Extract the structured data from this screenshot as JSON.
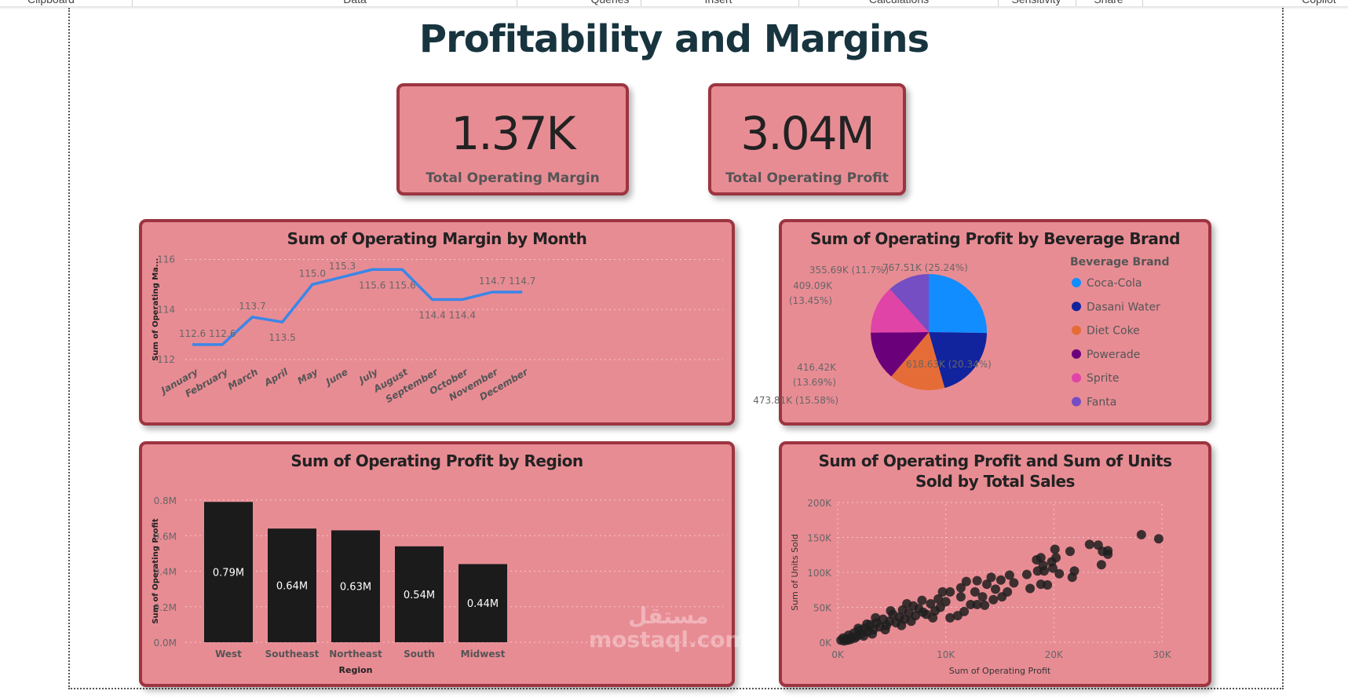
{
  "ribbon": {
    "groups": [
      "Clipboard",
      "Data",
      "Queries",
      "Insert",
      "Calculations",
      "Sensitivity",
      "Share",
      "Copilot"
    ]
  },
  "page": {
    "title": "Profitability and Margins"
  },
  "kpis": [
    {
      "value": "1.37K",
      "label": "Total Operating Margin"
    },
    {
      "value": "3.04M",
      "label": "Total Operating Profit"
    }
  ],
  "watermark": {
    "arabic": "مستقل",
    "latin": "mostaql.com"
  },
  "colors": {
    "card_bg": "#e88c94",
    "card_border": "#9c3540",
    "line": "#3a86e8",
    "bar": "#1b1b1b",
    "dot": "#1e1e1e"
  },
  "chart_data": [
    {
      "type": "line",
      "title": "Sum of Operating Margin by Month",
      "ylabel": "Sum of Operating Ma...",
      "xlabel": "",
      "categories": [
        "January",
        "February",
        "March",
        "April",
        "May",
        "June",
        "July",
        "August",
        "September",
        "October",
        "November",
        "December"
      ],
      "values": [
        112.6,
        112.6,
        113.7,
        113.5,
        115.0,
        115.3,
        115.6,
        115.6,
        114.4,
        114.4,
        114.7,
        114.7
      ],
      "labels": [
        "112.6",
        "112.6",
        "113.7",
        "113.5",
        "115.0",
        "115.3",
        "115.6",
        "115.6",
        "114.4",
        "114.4",
        "114.7",
        "114.7"
      ],
      "ylim": [
        112,
        116
      ],
      "yticks": [
        "112",
        "114",
        "116"
      ],
      "grid": true
    },
    {
      "type": "pie",
      "title": "Sum of Operating Profit by Beverage Brand",
      "legend_title": "Beverage Brand",
      "legend": "right",
      "slices": [
        {
          "name": "Coca-Cola",
          "value": 767.51,
          "label": "767.51K (25.24%)",
          "color": "#118dff"
        },
        {
          "name": "Dasani Water",
          "value": 618.63,
          "label": "618.63K (20.34%)",
          "color": "#12239e"
        },
        {
          "name": "Diet Coke",
          "value": 473.81,
          "label": "473.81K (15.58%)",
          "color": "#e66c37"
        },
        {
          "name": "Powerade",
          "value": 416.42,
          "label": "416.42K",
          "label2": "(13.69%)",
          "color": "#6b007b"
        },
        {
          "name": "Sprite",
          "value": 409.09,
          "label": "409.09K",
          "label2": "(13.45%)",
          "color": "#e044a7"
        },
        {
          "name": "Fanta",
          "value": 355.69,
          "label": "355.69K (11.7%)",
          "color": "#744ec2"
        }
      ]
    },
    {
      "type": "bar",
      "title": "Sum of Operating Profit by Region",
      "xlabel": "Region",
      "ylabel": "Sum of Operating Profit",
      "categories": [
        "West",
        "Southeast",
        "Northeast",
        "South",
        "Midwest"
      ],
      "values": [
        0.79,
        0.64,
        0.63,
        0.54,
        0.44
      ],
      "labels": [
        "0.79M",
        "0.64M",
        "0.63M",
        "0.54M",
        "0.44M"
      ],
      "ylim": [
        0,
        0.8
      ],
      "yticks": [
        "0.0M",
        "0.2M",
        "0.4M",
        "0.6M",
        "0.8M"
      ],
      "grid": true
    },
    {
      "type": "scatter",
      "title": "Sum of Operating Profit and Sum of Units Sold by Total Sales",
      "xlabel": "Sum of Operating Profit",
      "ylabel": "Sum of Units Sold",
      "xlim": [
        0,
        30
      ],
      "ylim": [
        0,
        200
      ],
      "xticks": [
        "0K",
        "10K",
        "20K",
        "30K"
      ],
      "yticks": [
        "0K",
        "50K",
        "100K",
        "150K",
        "200K"
      ],
      "units": "thousands",
      "grid": true,
      "points": [
        [
          28.1,
          154
        ],
        [
          29.7,
          148
        ],
        [
          23.3,
          140
        ],
        [
          24.1,
          139
        ],
        [
          24.5,
          130
        ],
        [
          25,
          126
        ],
        [
          25,
          131
        ],
        [
          24.4,
          111
        ],
        [
          21.5,
          130
        ],
        [
          21.9,
          102
        ],
        [
          21.7,
          93
        ],
        [
          20.1,
          133
        ],
        [
          20.2,
          121
        ],
        [
          19.8,
          115
        ],
        [
          19.9,
          106
        ],
        [
          20.5,
          98
        ],
        [
          18.4,
          118
        ],
        [
          18.8,
          121
        ],
        [
          19,
          110
        ],
        [
          18.5,
          102
        ],
        [
          19.1,
          102
        ],
        [
          17.5,
          97
        ],
        [
          17.8,
          77
        ],
        [
          18.8,
          83
        ],
        [
          19.4,
          82
        ],
        [
          15.9,
          96
        ],
        [
          16.3,
          85
        ],
        [
          15.1,
          89
        ],
        [
          14.2,
          93
        ],
        [
          13.8,
          83
        ],
        [
          15.7,
          72
        ],
        [
          15.2,
          65
        ],
        [
          14.4,
          61
        ],
        [
          14.6,
          76
        ],
        [
          12.9,
          88
        ],
        [
          11.9,
          87
        ],
        [
          11.4,
          78
        ],
        [
          12.7,
          72
        ],
        [
          13.4,
          65
        ],
        [
          13.6,
          53
        ],
        [
          12.9,
          54
        ],
        [
          12.3,
          54
        ],
        [
          11.7,
          44
        ],
        [
          11.1,
          38
        ],
        [
          10.4,
          35
        ],
        [
          10.4,
          72
        ],
        [
          9.7,
          72
        ],
        [
          11.4,
          65
        ],
        [
          10,
          58
        ],
        [
          9.5,
          50
        ],
        [
          9,
          45
        ],
        [
          8.6,
          55
        ],
        [
          8.2,
          40
        ],
        [
          7.8,
          60
        ],
        [
          7.5,
          48
        ],
        [
          7.2,
          38
        ],
        [
          7,
          52
        ],
        [
          6.6,
          42
        ],
        [
          6.2,
          33
        ],
        [
          6,
          46
        ],
        [
          5.7,
          36
        ],
        [
          5.4,
          28
        ],
        [
          5.1,
          40
        ],
        [
          4.8,
          30
        ],
        [
          4.5,
          24
        ],
        [
          4.2,
          33
        ],
        [
          3.9,
          22
        ],
        [
          3.6,
          28
        ],
        [
          3.3,
          18
        ],
        [
          3,
          25
        ],
        [
          2.8,
          15
        ],
        [
          2.5,
          20
        ],
        [
          2.2,
          12
        ],
        [
          2,
          17
        ],
        [
          1.8,
          9
        ],
        [
          1.5,
          13
        ],
        [
          1.3,
          7
        ],
        [
          1,
          10
        ],
        [
          0.8,
          5
        ],
        [
          0.5,
          6
        ],
        [
          0.3,
          3
        ],
        [
          8.8,
          35
        ],
        [
          9.3,
          62
        ],
        [
          6.8,
          30
        ],
        [
          5.9,
          24
        ],
        [
          4.4,
          18
        ],
        [
          3.2,
          12
        ],
        [
          2.4,
          9
        ],
        [
          1.6,
          6
        ],
        [
          7.9,
          43
        ],
        [
          6.4,
          55
        ],
        [
          4.9,
          45
        ],
        [
          3.5,
          35
        ],
        [
          2.7,
          26
        ],
        [
          1.9,
          20
        ],
        [
          0.9,
          3
        ],
        [
          1.2,
          4
        ],
        [
          0.6,
          2
        ]
      ]
    }
  ]
}
